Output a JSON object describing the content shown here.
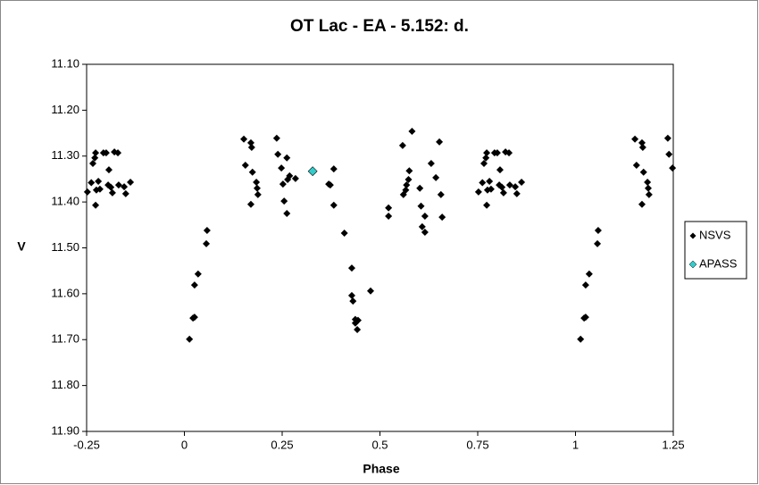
{
  "chart_data": {
    "type": "scatter",
    "title": "OT Lac - EA - 5.152: d.",
    "x_label": "Phase",
    "y_label": "V",
    "xlim": [
      -0.25,
      1.25
    ],
    "xticks": [
      -0.25,
      0,
      0.25,
      0.5,
      0.75,
      1,
      1.25
    ],
    "ylim": [
      11.1,
      11.9
    ],
    "y_inverted": true,
    "yticks": [
      {
        "value": 11.1,
        "label": "11.10"
      },
      {
        "value": 11.2,
        "label": "11.20"
      },
      {
        "value": 11.3,
        "label": "11.30"
      },
      {
        "value": 11.4,
        "label": "11.40"
      },
      {
        "value": 11.5,
        "label": "11.50"
      },
      {
        "value": 11.6,
        "label": "11.60"
      },
      {
        "value": 11.7,
        "label": "11.70"
      },
      {
        "value": 11.8,
        "label": "11.80"
      },
      {
        "value": 11.9,
        "label": "11.90"
      }
    ],
    "grid": false,
    "legend": "right",
    "series": [
      {
        "name": "NSVS",
        "color": "#000000",
        "x": [
          -0.248,
          -0.238,
          -0.234,
          -0.229,
          -0.227,
          -0.225,
          -0.227,
          -0.22,
          -0.216,
          -0.207,
          -0.2,
          -0.195,
          -0.193,
          -0.188,
          -0.184,
          -0.179,
          -0.17,
          -0.168,
          -0.154,
          -0.15,
          -0.138,
          0.013,
          0.022,
          0.026,
          0.026,
          0.035,
          0.056,
          0.058,
          0.152,
          0.156,
          0.17,
          0.172,
          0.174,
          0.17,
          0.184,
          0.186,
          0.188,
          0.236,
          0.239,
          0.248,
          0.252,
          0.255,
          0.262,
          0.262,
          0.264,
          0.269,
          0.284,
          0.369,
          0.373,
          0.382,
          0.382,
          0.409,
          0.428,
          0.428,
          0.431,
          0.437,
          0.437,
          0.444,
          0.442,
          0.476,
          0.522,
          0.522,
          0.558,
          0.56,
          0.566,
          0.568,
          0.573,
          0.575,
          0.582,
          0.602,
          0.605,
          0.608,
          0.615,
          0.615,
          0.631,
          0.643,
          0.652,
          0.656,
          0.659,
          0.752,
          0.762,
          0.766,
          0.771,
          0.773,
          0.775,
          0.773,
          0.78,
          0.784,
          0.793,
          0.8,
          0.805,
          0.807,
          0.812,
          0.816,
          0.821,
          0.83,
          0.832,
          0.846,
          0.85,
          0.862,
          1.013,
          1.022,
          1.026,
          1.026,
          1.035,
          1.056,
          1.058,
          1.152,
          1.156,
          1.17,
          1.172,
          1.174,
          1.17,
          1.184,
          1.186,
          1.188,
          1.236,
          1.239,
          1.248
        ],
        "values": [
          11.378,
          11.358,
          11.316,
          11.304,
          11.293,
          11.374,
          11.407,
          11.355,
          11.372,
          11.293,
          11.293,
          11.363,
          11.33,
          11.368,
          11.38,
          11.291,
          11.293,
          11.363,
          11.367,
          11.382,
          11.357,
          11.699,
          11.653,
          11.651,
          11.581,
          11.557,
          11.491,
          11.462,
          11.263,
          11.32,
          11.271,
          11.281,
          11.335,
          11.405,
          11.357,
          11.37,
          11.384,
          11.261,
          11.296,
          11.326,
          11.361,
          11.398,
          11.304,
          11.425,
          11.351,
          11.343,
          11.349,
          11.361,
          11.363,
          11.328,
          11.407,
          11.468,
          11.544,
          11.604,
          11.616,
          11.656,
          11.664,
          11.658,
          11.678,
          11.594,
          11.413,
          11.431,
          11.277,
          11.384,
          11.374,
          11.363,
          11.351,
          11.332,
          11.246,
          11.37,
          11.409,
          11.454,
          11.466,
          11.431,
          11.316,
          11.347,
          11.269,
          11.384,
          11.433,
          11.378,
          11.358,
          11.316,
          11.304,
          11.293,
          11.374,
          11.407,
          11.355,
          11.372,
          11.293,
          11.293,
          11.363,
          11.33,
          11.368,
          11.38,
          11.291,
          11.293,
          11.363,
          11.367,
          11.382,
          11.357,
          11.699,
          11.653,
          11.651,
          11.581,
          11.557,
          11.491,
          11.462,
          11.263,
          11.32,
          11.271,
          11.281,
          11.335,
          11.405,
          11.357,
          11.37,
          11.384,
          11.261,
          11.296,
          11.326
        ]
      },
      {
        "name": "APASS",
        "color": "#33cccc",
        "x": [
          0.328
        ],
        "values": [
          11.333
        ]
      }
    ]
  }
}
